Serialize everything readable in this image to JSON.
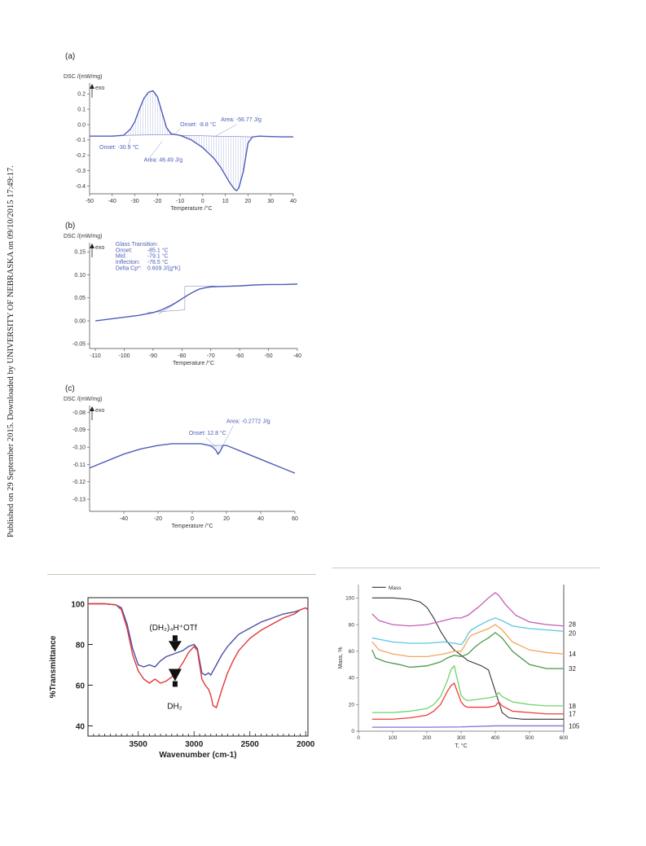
{
  "margin_note": "Published on 29 September 2015. Downloaded by UNIVERSITY OF NEBRASKA on 09/10/2015 17:49:17.",
  "chart_data": [
    {
      "id": "a",
      "type": "line",
      "panel_label": "(a)",
      "title": "",
      "ylabel": "DSC /(mW/mg)",
      "ylabel_note": "exo",
      "xlabel": "Temperature /°C",
      "xlim": [
        -50,
        40
      ],
      "ylim": [
        -0.45,
        0.27
      ],
      "xticks": [
        -50,
        -40,
        -30,
        -20,
        -10,
        0,
        10,
        20,
        30,
        40
      ],
      "yticks": [
        0.2,
        0.1,
        0.0,
        -0.1,
        -0.2,
        -0.3,
        -0.4
      ],
      "ytick_labels": [
        "0.2",
        "0.1",
        "0.0",
        "-0.1",
        "-0.2",
        "-0.3",
        "-0.4"
      ],
      "color": "#4d5db8",
      "series": [
        {
          "x": [
            -50,
            -40,
            -35,
            -32,
            -30,
            -28,
            -26,
            -24,
            -22,
            -20,
            -18,
            -16,
            -14,
            -12,
            -10,
            -5,
            0,
            5,
            8,
            10,
            12,
            14,
            15,
            16,
            18,
            20,
            22,
            25,
            30,
            35,
            40
          ],
          "y": [
            -0.075,
            -0.075,
            -0.07,
            -0.03,
            0.02,
            0.1,
            0.17,
            0.21,
            0.22,
            0.18,
            0.08,
            -0.02,
            -0.06,
            -0.065,
            -0.07,
            -0.1,
            -0.15,
            -0.22,
            -0.28,
            -0.33,
            -0.38,
            -0.42,
            -0.43,
            -0.41,
            -0.3,
            -0.12,
            -0.08,
            -0.075,
            -0.078,
            -0.08,
            -0.08
          ]
        }
      ],
      "annotations": [
        {
          "text": "Onset: -8.8 °C",
          "x": -10,
          "y": -0.01
        },
        {
          "text": "Area: -56.77 J/g",
          "x": 7,
          "y": 0.02
        },
        {
          "text": "Onset: -30.9 °C",
          "x": -47,
          "y": -0.16
        },
        {
          "text": "Area: 46.49 J/g",
          "x": -30,
          "y": -0.25
        }
      ]
    },
    {
      "id": "b",
      "type": "line",
      "panel_label": "(b)",
      "title": "",
      "ylabel": "DSC /(mW/mg)",
      "ylabel_note": "exo",
      "xlabel": "Temperature /°C",
      "xlim": [
        -112,
        -40
      ],
      "ylim": [
        -0.06,
        0.17
      ],
      "xticks": [
        -110,
        -100,
        -90,
        -80,
        -70,
        -60,
        -50,
        -40
      ],
      "yticks": [
        0.15,
        0.1,
        0.05,
        0.0,
        -0.05
      ],
      "ytick_labels": [
        "0.15",
        "0.10",
        "0.05",
        "0.00",
        "-0.05"
      ],
      "color": "#4d5db8",
      "series": [
        {
          "x": [
            -110,
            -105,
            -100,
            -95,
            -90,
            -87,
            -84,
            -82,
            -80,
            -78,
            -76,
            -74,
            -72,
            -70,
            -65,
            -60,
            -55,
            -50,
            -45,
            -40
          ],
          "y": [
            0.0,
            0.004,
            0.008,
            0.012,
            0.018,
            0.024,
            0.033,
            0.04,
            0.048,
            0.056,
            0.063,
            0.069,
            0.072,
            0.074,
            0.075,
            0.076,
            0.078,
            0.079,
            0.079,
            0.08
          ]
        }
      ],
      "annotations": [
        {
          "text": "Glass Transition:",
          "x": -103,
          "y": 0.163
        },
        {
          "text": "Onset:",
          "x": -103,
          "y": 0.15
        },
        {
          "text": "-85.1 °C",
          "x": -92,
          "y": 0.15
        },
        {
          "text": "Mid:",
          "x": -103,
          "y": 0.137
        },
        {
          "text": "-79.1 °C",
          "x": -92,
          "y": 0.137
        },
        {
          "text": "Inflection:",
          "x": -103,
          "y": 0.124
        },
        {
          "text": "-78.5 °C",
          "x": -92,
          "y": 0.124
        },
        {
          "text": "Delta Cp*:",
          "x": -103,
          "y": 0.111
        },
        {
          "text": "0.609 J/(g*K)",
          "x": -92,
          "y": 0.111
        }
      ]
    },
    {
      "id": "c",
      "type": "line",
      "panel_label": "(c)",
      "title": "",
      "ylabel": "DSC /(mW/mg)",
      "ylabel_note": "exo",
      "xlabel": "Temperature /°C",
      "xlim": [
        -60,
        60
      ],
      "ylim": [
        -0.137,
        -0.076
      ],
      "xticks": [
        -40,
        -20,
        0,
        20,
        40,
        60
      ],
      "yticks": [
        -0.08,
        -0.09,
        -0.1,
        -0.11,
        -0.12,
        -0.13
      ],
      "ytick_labels": [
        "-0.08",
        "-0.09",
        "-0.10",
        "-0.11",
        "-0.12",
        "-0.13"
      ],
      "color": "#4d5db8",
      "series": [
        {
          "x": [
            -60,
            -50,
            -40,
            -30,
            -20,
            -12,
            -5,
            0,
            5,
            10,
            12,
            14,
            15,
            16,
            17,
            18,
            20,
            25,
            30,
            35,
            40,
            45,
            50,
            55,
            60
          ],
          "y": [
            -0.112,
            -0.108,
            -0.104,
            -0.101,
            -0.099,
            -0.098,
            -0.098,
            -0.098,
            -0.098,
            -0.099,
            -0.1,
            -0.102,
            -0.104,
            -0.103,
            -0.101,
            -0.099,
            -0.099,
            -0.101,
            -0.103,
            -0.105,
            -0.107,
            -0.109,
            -0.111,
            -0.113,
            -0.115
          ]
        }
      ],
      "annotations": [
        {
          "text": "Onset: 12.8 °C",
          "x": -2,
          "y": -0.093
        },
        {
          "text": "Area: -0.2772 J/g",
          "x": 20,
          "y": -0.086
        }
      ]
    },
    {
      "id": "ir",
      "type": "line",
      "title": "",
      "ylabel": "%Transmittance",
      "xlabel": "Wavenumber (cm-1)",
      "xlim": [
        3950,
        1980
      ],
      "ylim": [
        35,
        103
      ],
      "xticks": [
        3500,
        3000,
        2500,
        2000
      ],
      "yticks": [
        100,
        80,
        60,
        40
      ],
      "series": [
        {
          "name": "(DH2)4H+OTf",
          "color": "#4b4fa8",
          "x": [
            3950,
            3800,
            3700,
            3650,
            3600,
            3550,
            3500,
            3450,
            3400,
            3350,
            3300,
            3250,
            3200,
            3150,
            3100,
            3050,
            3000,
            2970,
            2950,
            2930,
            2900,
            2870,
            2850,
            2800,
            2750,
            2700,
            2650,
            2600,
            2500,
            2400,
            2300,
            2200,
            2100,
            2050,
            2000,
            1980
          ],
          "y": [
            100,
            100,
            99.5,
            98,
            90,
            78,
            70,
            69,
            70,
            69,
            72,
            74,
            75,
            76,
            77,
            79,
            80,
            78,
            72,
            66,
            65,
            66,
            65,
            70,
            75,
            79,
            82,
            85,
            88,
            91,
            93,
            95,
            96,
            97,
            98,
            97
          ]
        },
        {
          "name": "DH2",
          "color": "#e23a3a",
          "x": [
            3950,
            3800,
            3700,
            3650,
            3600,
            3550,
            3500,
            3450,
            3400,
            3350,
            3300,
            3250,
            3200,
            3150,
            3100,
            3050,
            3000,
            2970,
            2950,
            2930,
            2900,
            2870,
            2850,
            2830,
            2800,
            2750,
            2700,
            2650,
            2600,
            2500,
            2400,
            2300,
            2200,
            2100,
            2050,
            2000,
            1980
          ],
          "y": [
            100,
            100,
            99.5,
            97,
            88,
            75,
            67,
            63,
            61,
            63,
            61,
            62,
            64,
            67,
            71,
            76,
            79,
            77,
            70,
            63,
            60,
            58,
            55,
            50,
            49,
            58,
            66,
            72,
            77,
            83,
            87,
            90,
            93,
            95,
            97,
            98,
            97
          ]
        }
      ],
      "annotations": [
        {
          "text": "(DH₂)₄H⁺OTf",
          "target": "(DH2)4H+OTf"
        },
        {
          "text": "DH₂",
          "target": "DH2"
        }
      ]
    },
    {
      "id": "tga",
      "type": "line",
      "title": "",
      "ylabel": "Mass, %",
      "xlabel": "T, °C",
      "xlim": [
        0,
        600
      ],
      "ylim": [
        0,
        110
      ],
      "xticks": [
        0,
        100,
        200,
        300,
        400,
        500,
        600
      ],
      "yticks": [
        0,
        20,
        40,
        60,
        80,
        100
      ],
      "legend": {
        "entries": [
          "Mass"
        ],
        "position": "top-left"
      },
      "series": [
        {
          "name": "Mass",
          "color": "#333333",
          "end_label": "",
          "x": [
            40,
            100,
            150,
            180,
            200,
            220,
            240,
            260,
            280,
            300,
            320,
            340,
            360,
            380,
            400,
            420,
            440,
            480,
            520,
            560,
            600
          ],
          "y": [
            100,
            100,
            99,
            97,
            93,
            85,
            75,
            67,
            61,
            57,
            53,
            51,
            49,
            46,
            30,
            14,
            10,
            9,
            9,
            9,
            9
          ]
        },
        {
          "name": "28",
          "color": "#c45fb5",
          "end_label": "28",
          "x": [
            40,
            60,
            100,
            150,
            200,
            250,
            280,
            300,
            320,
            350,
            380,
            400,
            410,
            430,
            460,
            500,
            550,
            600
          ],
          "y": [
            88,
            83,
            80,
            79,
            80,
            83,
            85,
            85,
            87,
            93,
            100,
            104,
            102,
            95,
            87,
            82,
            80,
            79
          ]
        },
        {
          "name": "20",
          "color": "#5cc6e0",
          "end_label": "20",
          "x": [
            40,
            60,
            100,
            150,
            200,
            250,
            280,
            300,
            310,
            320,
            330,
            350,
            380,
            400,
            420,
            450,
            500,
            550,
            600
          ],
          "y": [
            70,
            69,
            67,
            66,
            66,
            67,
            66,
            65,
            68,
            73,
            76,
            79,
            83,
            85,
            83,
            79,
            77,
            76,
            75
          ]
        },
        {
          "name": "14",
          "color": "#f5a55a",
          "end_label": "14",
          "x": [
            40,
            60,
            100,
            150,
            200,
            250,
            280,
            300,
            310,
            320,
            330,
            350,
            380,
            400,
            420,
            450,
            500,
            550,
            600
          ],
          "y": [
            67,
            61,
            58,
            56,
            56,
            58,
            60,
            60,
            64,
            69,
            72,
            74,
            77,
            80,
            76,
            67,
            61,
            59,
            58
          ]
        },
        {
          "name": "32",
          "color": "#4a9a4a",
          "end_label": "32",
          "x": [
            40,
            50,
            80,
            120,
            150,
            200,
            240,
            260,
            280,
            300,
            320,
            340,
            360,
            380,
            400,
            420,
            450,
            500,
            550,
            600
          ],
          "y": [
            61,
            55,
            52,
            50,
            48,
            49,
            52,
            55,
            57,
            56,
            58,
            63,
            67,
            70,
            74,
            70,
            60,
            50,
            47,
            47
          ]
        },
        {
          "name": "18",
          "color": "#6fd36a",
          "end_label": "18",
          "x": [
            40,
            100,
            150,
            200,
            220,
            240,
            260,
            270,
            280,
            290,
            300,
            310,
            320,
            350,
            380,
            400,
            410,
            420,
            450,
            500,
            550,
            600
          ],
          "y": [
            14,
            14,
            15,
            17,
            20,
            26,
            38,
            46,
            49,
            38,
            27,
            24,
            23,
            24,
            25,
            26,
            29,
            26,
            22,
            20,
            19,
            19
          ]
        },
        {
          "name": "17",
          "color": "#f03c3c",
          "end_label": "17",
          "x": [
            40,
            100,
            150,
            200,
            220,
            240,
            260,
            270,
            280,
            290,
            300,
            310,
            320,
            350,
            380,
            400,
            410,
            420,
            450,
            500,
            550,
            600
          ],
          "y": [
            9,
            9,
            10,
            12,
            15,
            20,
            30,
            34,
            36,
            29,
            22,
            19,
            18,
            18,
            18,
            19,
            22,
            19,
            15,
            14,
            13,
            13
          ]
        },
        {
          "name": "105",
          "color": "#7b76d8",
          "end_label": "105",
          "x": [
            40,
            100,
            200,
            300,
            400,
            500,
            600
          ],
          "y": [
            3,
            3,
            3,
            3.2,
            4,
            4,
            4
          ]
        }
      ]
    }
  ]
}
